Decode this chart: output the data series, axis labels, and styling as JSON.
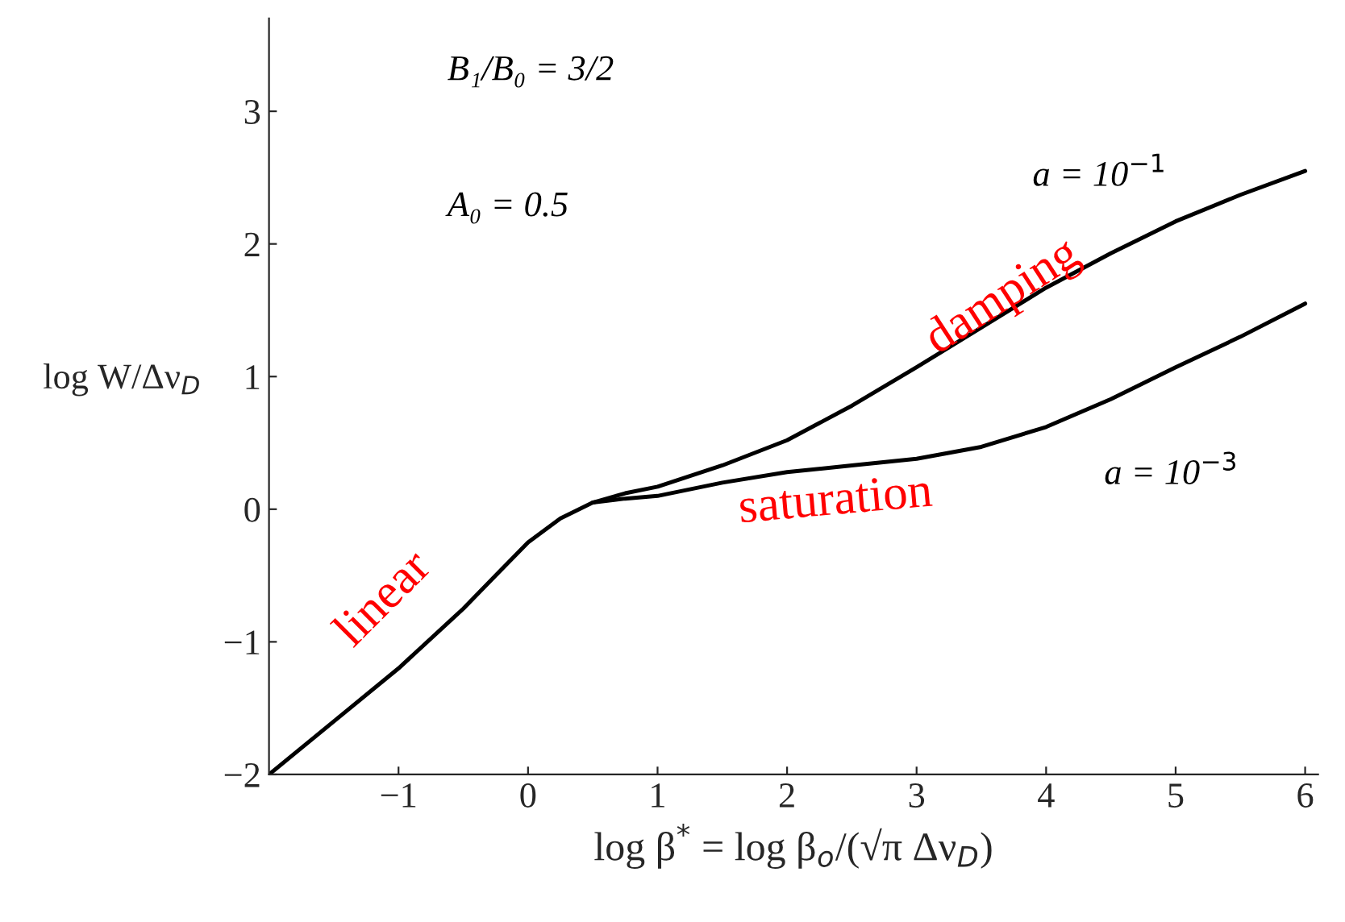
{
  "chart_data": {
    "type": "line",
    "xlabel": "log β$^{*}$ = log β$_{o}$/(√π Δν$_{D}$)",
    "ylabel": "log W/Δν$_{D}$",
    "xlim": [
      -2,
      6.1
    ],
    "ylim": [
      -2,
      3.7
    ],
    "xticks": [
      {
        "value": -1,
        "label": "−1"
      },
      0,
      1,
      2,
      3,
      4,
      5,
      6
    ],
    "yticks": [
      {
        "value": -2,
        "label": "−2"
      },
      {
        "value": -1,
        "label": "−1"
      },
      0,
      1,
      2,
      3
    ],
    "series": [
      {
        "name": "a = 10$^{−1}$",
        "color": "#000000",
        "x": [
          -2,
          -1.5,
          -1,
          -0.5,
          -0.25,
          0,
          0.25,
          0.5,
          0.75,
          1,
          1.5,
          2,
          2.5,
          3,
          3.5,
          4,
          4.5,
          5,
          5.5,
          6
        ],
        "values": [
          -2,
          -1.6,
          -1.2,
          -0.75,
          -0.5,
          -0.25,
          -0.07,
          0.05,
          0.12,
          0.17,
          0.33,
          0.52,
          0.78,
          1.07,
          1.37,
          1.67,
          1.93,
          2.17,
          2.37,
          2.55
        ]
      },
      {
        "name": "a = 10$^{−3}$",
        "color": "#000000",
        "x": [
          0.5,
          0.75,
          1,
          1.5,
          2,
          2.5,
          3,
          3.5,
          4,
          4.5,
          5,
          5.5,
          6
        ],
        "values": [
          0.05,
          0.08,
          0.1,
          0.2,
          0.28,
          0.33,
          0.38,
          0.47,
          0.62,
          0.83,
          1.07,
          1.3,
          1.55
        ]
      }
    ],
    "annotations": [
      "B₁/B₀ = 3/2",
      "A₀ = 0.5",
      "linear",
      "saturation",
      "damping"
    ],
    "grid": false,
    "legend": false
  }
}
